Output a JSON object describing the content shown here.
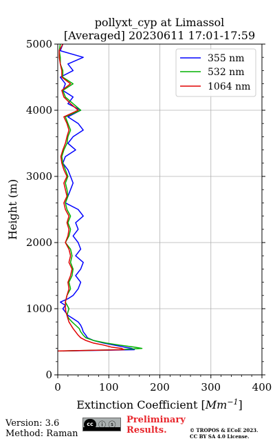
{
  "chart_data": {
    "type": "line",
    "title": "pollyxt_cyp at Limassol",
    "subtitle": "[Averaged] 20230611 17:01-17:59",
    "xlabel": "Extinction Coefficient [Mm⁻¹]",
    "xlabel_text": "Extinction Coefficient [",
    "xlabel_unit": "Mm",
    "xlabel_sup": "−1",
    "xlabel_close": "]",
    "ylabel": "Height (m)",
    "xlim": [
      0,
      400
    ],
    "ylim": [
      0,
      5000
    ],
    "xticks": [
      "0",
      "100",
      "200",
      "300",
      "400"
    ],
    "yticks": [
      "0",
      "1000",
      "2000",
      "3000",
      "4000",
      "5000"
    ],
    "grid": true,
    "legend_position": "top-right",
    "series": [
      {
        "name": "355 nm",
        "color": "#0000ff",
        "height": [
          360,
          380,
          400,
          420,
          450,
          480,
          520,
          560,
          600,
          650,
          700,
          750,
          800,
          850,
          900,
          950,
          1000,
          1050,
          1100,
          1150,
          1200,
          1300,
          1400,
          1500,
          1600,
          1700,
          1800,
          1900,
          2000,
          2100,
          2200,
          2300,
          2400,
          2500,
          2600,
          2700,
          2800,
          2900,
          3000,
          3100,
          3200,
          3300,
          3400,
          3500,
          3600,
          3700,
          3800,
          3900,
          4000,
          4100,
          4200,
          4300,
          4400,
          4500,
          4600,
          4700,
          4800,
          4900,
          5000
        ],
        "values": [
          10,
          150,
          145,
          130,
          110,
          90,
          70,
          58,
          55,
          50,
          48,
          45,
          40,
          30,
          20,
          15,
          10,
          15,
          5,
          20,
          30,
          40,
          45,
          35,
          45,
          50,
          35,
          45,
          40,
          30,
          40,
          35,
          50,
          40,
          15,
          20,
          25,
          30,
          25,
          20,
          10,
          15,
          35,
          20,
          30,
          50,
          40,
          20,
          45,
          20,
          30,
          10,
          15,
          5,
          30,
          20,
          50,
          5,
          10
        ]
      },
      {
        "name": "532 nm",
        "color": "#00b000",
        "height": [
          360,
          380,
          400,
          420,
          450,
          480,
          520,
          560,
          600,
          650,
          700,
          750,
          800,
          850,
          900,
          950,
          1000,
          1100,
          1200,
          1300,
          1400,
          1500,
          1600,
          1700,
          1800,
          1900,
          2000,
          2100,
          2200,
          2300,
          2400,
          2500,
          2600,
          2700,
          2800,
          2900,
          3000,
          3100,
          3200,
          3300,
          3400,
          3500,
          3600,
          3700,
          3800,
          3900,
          4000,
          4100,
          4200,
          4300,
          4400,
          4500,
          4600,
          4700,
          4800,
          4900,
          5000
        ],
        "values": [
          5,
          120,
          165,
          150,
          120,
          95,
          70,
          55,
          50,
          45,
          42,
          35,
          28,
          22,
          18,
          20,
          22,
          15,
          18,
          25,
          22,
          28,
          30,
          25,
          28,
          25,
          15,
          22,
          25,
          20,
          25,
          18,
          15,
          20,
          18,
          15,
          20,
          15,
          10,
          8,
          12,
          18,
          20,
          25,
          20,
          15,
          45,
          30,
          15,
          10,
          30,
          10,
          10,
          5,
          5,
          3,
          5
        ]
      },
      {
        "name": "1064 nm",
        "color": "#e00000",
        "height": [
          360,
          380,
          400,
          420,
          450,
          480,
          520,
          560,
          600,
          650,
          700,
          750,
          800,
          850,
          900,
          950,
          1000,
          1100,
          1200,
          1300,
          1400,
          1500,
          1600,
          1700,
          1800,
          1900,
          2000,
          2100,
          2200,
          2300,
          2400,
          2500,
          2600,
          2700,
          2800,
          2900,
          3000,
          3100,
          3200,
          3300,
          3400,
          3500,
          3600,
          3700,
          3800,
          3900,
          4000,
          4100,
          4200,
          4300,
          4400,
          4500,
          4600,
          4700,
          4800,
          4900,
          5000
        ],
        "values": [
          0,
          130,
          125,
          105,
          90,
          70,
          55,
          45,
          40,
          35,
          30,
          26,
          22,
          20,
          18,
          16,
          15,
          15,
          18,
          22,
          20,
          25,
          28,
          22,
          25,
          22,
          15,
          20,
          22,
          18,
          22,
          15,
          12,
          18,
          15,
          12,
          18,
          12,
          8,
          6,
          10,
          15,
          18,
          22,
          18,
          12,
          40,
          25,
          12,
          8,
          25,
          8,
          8,
          5,
          3,
          3,
          10
        ]
      }
    ]
  },
  "footer": {
    "version": "Version: 3.6",
    "method": "Method: Raman",
    "prelim_line1": "Preliminary",
    "prelim_line2": "Results.",
    "copyright_line1": "© TROPOS & ECoE 2023.",
    "copyright_line2": "CC BY SA 4.0 License.",
    "cc_label": "cc",
    "cc_icons": "ⓘ ⓢ"
  }
}
